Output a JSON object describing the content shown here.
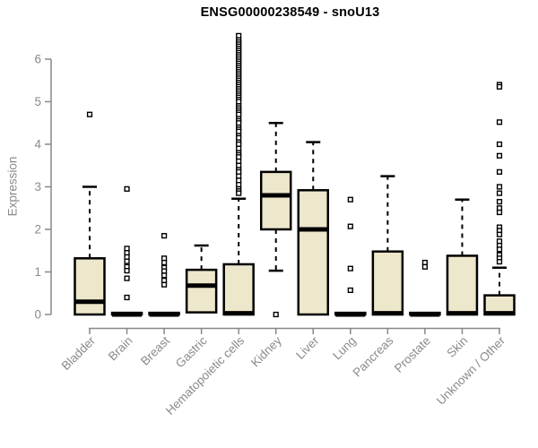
{
  "chart_data": {
    "type": "boxplot",
    "title": "ENSG00000238549 - snoU13",
    "ylabel": "Expression",
    "xlabel": "",
    "ylim": [
      0,
      6.6
    ],
    "yticks": [
      0,
      1,
      2,
      3,
      4,
      5,
      6
    ],
    "grid": false,
    "legend": "none",
    "box_fill": "#EDE7CB",
    "box_stroke": "#000000",
    "axis_color": "#888888",
    "label_color": "#8a8a8a",
    "categories": [
      "Bladder",
      "Brain",
      "Breast",
      "Gastric",
      "Hematopoietic cells",
      "Kidney",
      "Liver",
      "Lung",
      "Pancreas",
      "Prostate",
      "Skin",
      "Unknown / Other"
    ],
    "boxes": [
      {
        "category": "Bladder",
        "low": 0,
        "q1": 0,
        "median": 0.3,
        "q3": 1.32,
        "high": 3.0,
        "outliers": [
          4.7
        ]
      },
      {
        "category": "Brain",
        "low": 0,
        "q1": 0,
        "median": 0,
        "q3": 0.04,
        "high": 0.04,
        "outliers": [
          2.95,
          1.55,
          1.45,
          1.35,
          1.25,
          1.12,
          1.03,
          0.85,
          0.4
        ]
      },
      {
        "category": "Breast",
        "low": 0,
        "q1": 0,
        "median": 0,
        "q3": 0.04,
        "high": 0.04,
        "outliers": [
          1.85,
          1.32,
          1.22,
          1.1,
          1.02,
          0.92,
          0.8,
          0.7
        ]
      },
      {
        "category": "Gastric",
        "low": 0.05,
        "q1": 0.05,
        "median": 0.68,
        "q3": 1.05,
        "high": 1.62,
        "outliers": []
      },
      {
        "category": "Hematopoietic cells",
        "low": 0,
        "q1": 0,
        "median": 0.03,
        "q3": 1.18,
        "high": 2.72,
        "outliers": [
          6.55,
          6.45,
          6.4,
          6.35,
          6.3,
          6.25,
          6.2,
          6.15,
          6.1,
          6.05,
          6.0,
          5.95,
          5.9,
          5.85,
          5.8,
          5.75,
          5.7,
          5.65,
          5.6,
          5.55,
          5.5,
          5.45,
          5.4,
          5.35,
          5.3,
          5.25,
          5.2,
          5.15,
          5.1,
          5.05,
          5.0,
          4.9,
          4.85,
          4.8,
          4.75,
          4.7,
          4.6,
          4.55,
          4.5,
          4.4,
          4.35,
          4.3,
          4.2,
          4.15,
          4.05,
          4.0,
          3.9,
          3.8,
          3.75,
          3.7,
          3.6,
          3.5,
          3.4,
          3.35,
          3.25,
          3.15,
          3.05,
          2.95,
          2.9,
          2.85
        ]
      },
      {
        "category": "Kidney",
        "low": 1.03,
        "q1": 2.0,
        "median": 2.8,
        "q3": 3.35,
        "high": 4.5,
        "outliers": [
          0
        ]
      },
      {
        "category": "Liver",
        "low": 0,
        "q1": 0,
        "median": 2.0,
        "q3": 2.92,
        "high": 4.05,
        "outliers": []
      },
      {
        "category": "Lung",
        "low": 0,
        "q1": 0,
        "median": 0,
        "q3": 0.04,
        "high": 0.04,
        "outliers": [
          2.7,
          2.07,
          1.08,
          0.57
        ]
      },
      {
        "category": "Pancreas",
        "low": 0,
        "q1": 0,
        "median": 0.03,
        "q3": 1.48,
        "high": 3.25,
        "outliers": []
      },
      {
        "category": "Prostate",
        "low": 0,
        "q1": 0,
        "median": 0,
        "q3": 0.04,
        "high": 0.04,
        "outliers": [
          1.22,
          1.12
        ]
      },
      {
        "category": "Skin",
        "low": 0,
        "q1": 0,
        "median": 0.03,
        "q3": 1.38,
        "high": 2.7,
        "outliers": []
      },
      {
        "category": "Unknown / Other",
        "low": 0,
        "q1": 0,
        "median": 0.03,
        "q3": 0.45,
        "high": 1.1,
        "outliers": [
          5.4,
          5.35,
          4.52,
          4.0,
          3.73,
          3.35,
          3.0,
          2.85,
          2.65,
          2.5,
          2.4,
          2.05,
          1.97,
          1.88,
          1.72,
          1.62,
          1.53,
          1.4,
          1.32,
          1.24
        ]
      }
    ]
  }
}
